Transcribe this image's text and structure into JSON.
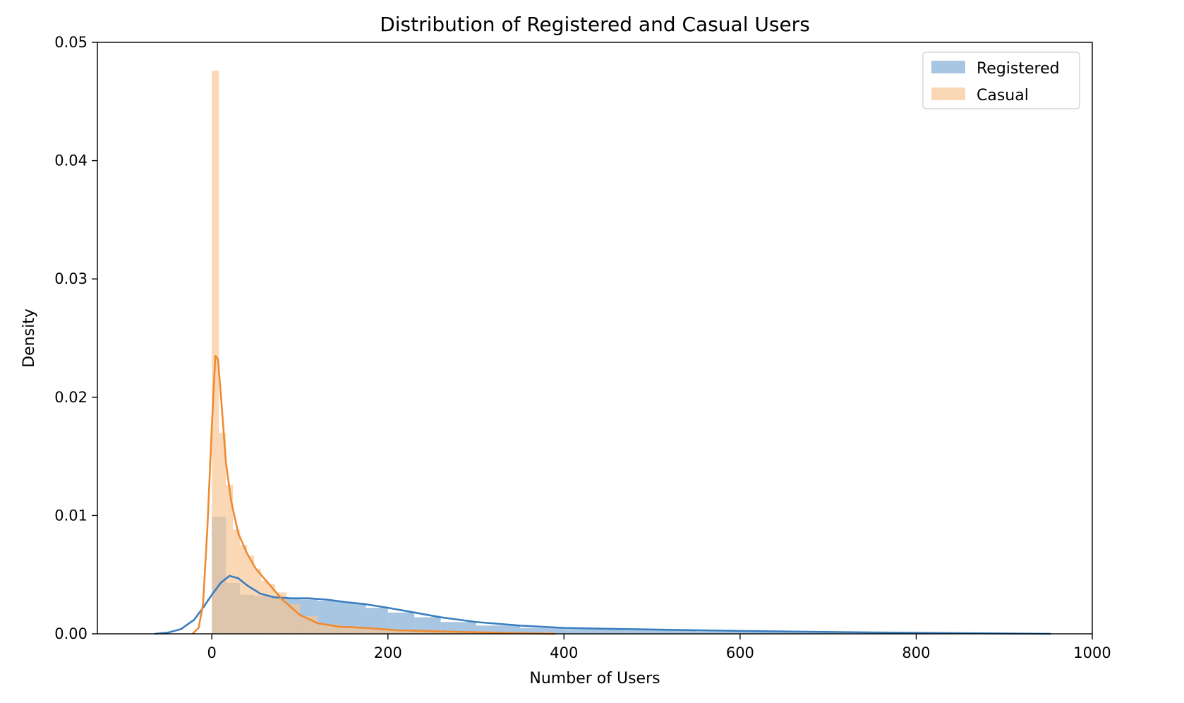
{
  "chart_data": {
    "type": "histogram",
    "title": "Distribution of Registered and Casual Users",
    "xlabel": "Number of Users",
    "ylabel": "Density",
    "xlim": [
      -130,
      1000
    ],
    "ylim": [
      0,
      0.05
    ],
    "x_ticks": [
      0,
      200,
      400,
      600,
      800,
      1000
    ],
    "y_ticks": [
      0.0,
      0.01,
      0.02,
      0.03,
      0.04,
      0.05
    ],
    "y_tick_labels": [
      "0.00",
      "0.01",
      "0.02",
      "0.03",
      "0.04",
      "0.05"
    ],
    "grid": false,
    "legend_position": "top-right",
    "series": [
      {
        "name": "Registered",
        "hist_color": "#90b6d9",
        "kde_color": "#3a7ebf",
        "bins": [
          {
            "x0": 0,
            "x1": 16,
            "density": 0.0099
          },
          {
            "x0": 16,
            "x1": 32,
            "density": 0.0043
          },
          {
            "x0": 32,
            "x1": 48,
            "density": 0.0033
          },
          {
            "x0": 48,
            "x1": 64,
            "density": 0.0032
          },
          {
            "x0": 64,
            "x1": 80,
            "density": 0.0031
          },
          {
            "x0": 80,
            "x1": 100,
            "density": 0.003
          },
          {
            "x0": 100,
            "x1": 120,
            "density": 0.0029
          },
          {
            "x0": 120,
            "x1": 150,
            "density": 0.0028
          },
          {
            "x0": 150,
            "x1": 175,
            "density": 0.0026
          },
          {
            "x0": 175,
            "x1": 200,
            "density": 0.0022
          },
          {
            "x0": 200,
            "x1": 230,
            "density": 0.0018
          },
          {
            "x0": 230,
            "x1": 260,
            "density": 0.0014
          },
          {
            "x0": 260,
            "x1": 300,
            "density": 0.001
          },
          {
            "x0": 300,
            "x1": 350,
            "density": 0.0007
          },
          {
            "x0": 350,
            "x1": 400,
            "density": 0.0005
          },
          {
            "x0": 400,
            "x1": 470,
            "density": 0.0004
          },
          {
            "x0": 470,
            "x1": 550,
            "density": 0.0003
          },
          {
            "x0": 550,
            "x1": 650,
            "density": 0.0002
          },
          {
            "x0": 650,
            "x1": 750,
            "density": 0.00012
          },
          {
            "x0": 750,
            "x1": 886,
            "density": 8e-05
          }
        ],
        "kde": [
          [
            -65,
            0.0
          ],
          [
            -50,
            0.0001
          ],
          [
            -35,
            0.0004
          ],
          [
            -20,
            0.0012
          ],
          [
            -10,
            0.0022
          ],
          [
            0,
            0.0033
          ],
          [
            10,
            0.0043
          ],
          [
            20,
            0.0049
          ],
          [
            30,
            0.0047
          ],
          [
            40,
            0.0041
          ],
          [
            55,
            0.0034
          ],
          [
            70,
            0.0031
          ],
          [
            90,
            0.003
          ],
          [
            110,
            0.003
          ],
          [
            130,
            0.0029
          ],
          [
            150,
            0.0027
          ],
          [
            175,
            0.0025
          ],
          [
            200,
            0.0022
          ],
          [
            230,
            0.0018
          ],
          [
            260,
            0.0014
          ],
          [
            300,
            0.001
          ],
          [
            350,
            0.0007
          ],
          [
            400,
            0.0005
          ],
          [
            470,
            0.0004
          ],
          [
            550,
            0.0003
          ],
          [
            650,
            0.0002
          ],
          [
            750,
            0.00012
          ],
          [
            850,
            6e-05
          ],
          [
            953,
            0.0
          ]
        ]
      },
      {
        "name": "Casual",
        "hist_color": "#f7c594",
        "kde_color": "#ef8a31",
        "bins": [
          {
            "x0": 0,
            "x1": 8,
            "density": 0.0476
          },
          {
            "x0": 8,
            "x1": 16,
            "density": 0.017
          },
          {
            "x0": 16,
            "x1": 24,
            "density": 0.0126
          },
          {
            "x0": 24,
            "x1": 32,
            "density": 0.0088
          },
          {
            "x0": 32,
            "x1": 40,
            "density": 0.0075
          },
          {
            "x0": 40,
            "x1": 48,
            "density": 0.0066
          },
          {
            "x0": 48,
            "x1": 56,
            "density": 0.0055
          },
          {
            "x0": 56,
            "x1": 64,
            "density": 0.0045
          },
          {
            "x0": 64,
            "x1": 72,
            "density": 0.0042
          },
          {
            "x0": 72,
            "x1": 85,
            "density": 0.0035
          },
          {
            "x0": 85,
            "x1": 100,
            "density": 0.0025
          },
          {
            "x0": 100,
            "x1": 120,
            "density": 0.0015
          },
          {
            "x0": 120,
            "x1": 145,
            "density": 0.0008
          },
          {
            "x0": 145,
            "x1": 175,
            "density": 0.0005
          },
          {
            "x0": 175,
            "x1": 210,
            "density": 0.0004
          },
          {
            "x0": 210,
            "x1": 260,
            "density": 0.0003
          },
          {
            "x0": 260,
            "x1": 320,
            "density": 0.0002
          },
          {
            "x0": 320,
            "x1": 390,
            "density": 0.00012
          }
        ],
        "kde": [
          [
            -22,
            0.0
          ],
          [
            -15,
            0.0005
          ],
          [
            -10,
            0.0025
          ],
          [
            -5,
            0.009
          ],
          [
            0,
            0.0175
          ],
          [
            4,
            0.0235
          ],
          [
            7,
            0.0232
          ],
          [
            11,
            0.0195
          ],
          [
            16,
            0.0145
          ],
          [
            22,
            0.0112
          ],
          [
            30,
            0.0085
          ],
          [
            40,
            0.0068
          ],
          [
            50,
            0.0055
          ],
          [
            65,
            0.0042
          ],
          [
            80,
            0.0029
          ],
          [
            100,
            0.0016
          ],
          [
            120,
            0.0009
          ],
          [
            145,
            0.0006
          ],
          [
            175,
            0.0005
          ],
          [
            210,
            0.0003
          ],
          [
            260,
            0.0002
          ],
          [
            320,
            0.0001
          ],
          [
            390,
            0.0
          ]
        ]
      }
    ]
  }
}
